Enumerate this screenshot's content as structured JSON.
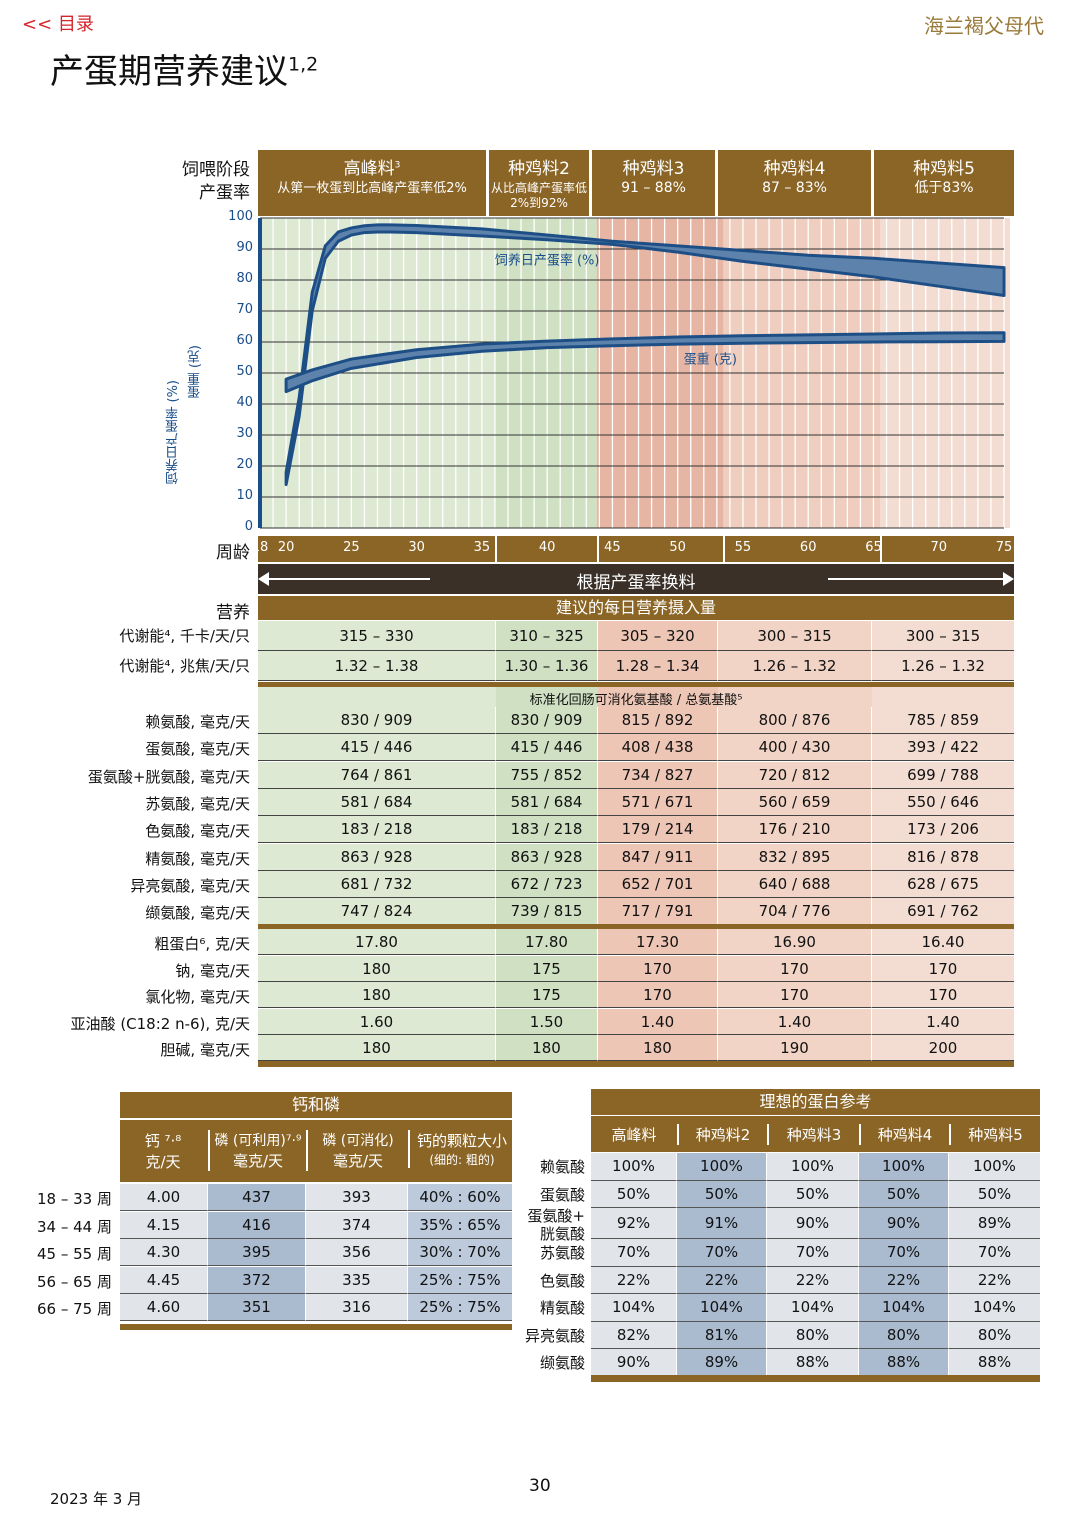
{
  "header": {
    "toc_link": "<< 目录",
    "brand": "海兰褐父母代",
    "title": "产蛋期营养建议",
    "title_sup": "1,2"
  },
  "chart_labels": {
    "stage_label": "饲喂阶段",
    "rate_label": "产蛋率",
    "week_label": "周龄",
    "y_axis_label_1": "饲养日产蛋率 (%)",
    "y_axis_label_2": "蛋重 (克)",
    "change_feed_label": "根据产蛋率换料"
  },
  "stages": [
    {
      "name": "高峰料",
      "sup": "3",
      "desc": "从第一枚蛋到比高峰产蛋率低2%"
    },
    {
      "name": "种鸡料2",
      "sup": "",
      "desc": "从比高峰产蛋率低2%到92%"
    },
    {
      "name": "种鸡料3",
      "sup": "",
      "desc": "91 – 88%"
    },
    {
      "name": "种鸡料4",
      "sup": "",
      "desc": "87 – 83%"
    },
    {
      "name": "种鸡料5",
      "sup": "",
      "desc": "低于83%"
    }
  ],
  "chart_data": {
    "type": "line",
    "x_ticks": [
      18,
      20,
      25,
      30,
      35,
      40,
      45,
      50,
      55,
      60,
      65,
      70,
      75
    ],
    "y_ticks": [
      0,
      10,
      20,
      30,
      40,
      50,
      60,
      70,
      80,
      90,
      100
    ],
    "xlim": [
      18,
      75
    ],
    "ylim": [
      0,
      100
    ],
    "grid": true,
    "series": [
      {
        "name": "饲养日产蛋率 (%)",
        "color": "#1d4f86",
        "x": [
          20,
          21,
          22,
          23,
          24,
          25,
          26,
          27,
          28,
          30,
          35,
          40,
          45,
          50,
          55,
          60,
          65,
          70,
          75
        ],
        "upper": [
          18,
          42,
          76,
          91,
          95.5,
          96.8,
          97.5,
          97.8,
          97.8,
          97.6,
          96.5,
          94.5,
          92.5,
          91,
          89.5,
          88,
          87,
          85.5,
          84
        ],
        "lower": [
          14,
          36,
          70,
          87,
          92.5,
          94.5,
          95.3,
          95.5,
          95.5,
          95.3,
          94.2,
          93,
          91.5,
          89,
          86,
          83.5,
          81,
          78,
          75
        ]
      },
      {
        "name": "蛋重 (克)",
        "color": "#1d4f86",
        "x": [
          20,
          22,
          25,
          30,
          35,
          40,
          45,
          50,
          55,
          60,
          65,
          70,
          75
        ],
        "upper": [
          48,
          51,
          54.5,
          57.5,
          59.3,
          60.3,
          61,
          61.6,
          62,
          62.3,
          62.6,
          62.9,
          63
        ],
        "lower": [
          44,
          47.5,
          51.5,
          55,
          57,
          58.2,
          58.8,
          59.3,
          59.6,
          59.8,
          60,
          60.1,
          60.2
        ]
      }
    ]
  },
  "nutrition": {
    "header_left": "营养",
    "header_main": "建议的每日营养摄入量",
    "energy_rows": [
      {
        "label": "代谢能⁴, 千卡/天/只",
        "values": [
          "315 – 330",
          "310 – 325",
          "305 – 320",
          "300 – 315",
          "300 – 315"
        ]
      },
      {
        "label": "代谢能⁴, 兆焦/天/只",
        "values": [
          "1.32 – 1.38",
          "1.30 – 1.36",
          "1.28 – 1.34",
          "1.26 – 1.32",
          "1.26 – 1.32"
        ]
      }
    ],
    "aa_header": "标准化回肠可消化氨基酸 / 总氨基酸⁵",
    "aa_rows": [
      {
        "label": "赖氨酸, 毫克/天",
        "values": [
          "830 / 909",
          "830 / 909",
          "815 / 892",
          "800 / 876",
          "785 / 859"
        ]
      },
      {
        "label": "蛋氨酸, 毫克/天",
        "values": [
          "415 / 446",
          "415 / 446",
          "408 / 438",
          "400 / 430",
          "393 / 422"
        ]
      },
      {
        "label": "蛋氨酸+胱氨酸, 毫克/天",
        "values": [
          "764 / 861",
          "755 / 852",
          "734 / 827",
          "720 / 812",
          "699 / 788"
        ]
      },
      {
        "label": "苏氨酸, 毫克/天",
        "values": [
          "581 / 684",
          "581 / 684",
          "571 / 671",
          "560 / 659",
          "550 / 646"
        ]
      },
      {
        "label": "色氨酸, 毫克/天",
        "values": [
          "183 / 218",
          "183 / 218",
          "179 / 214",
          "176 / 210",
          "173 / 206"
        ]
      },
      {
        "label": "精氨酸, 毫克/天",
        "values": [
          "863 / 928",
          "863 / 928",
          "847 / 911",
          "832 / 895",
          "816 / 878"
        ]
      },
      {
        "label": "异亮氨酸, 毫克/天",
        "values": [
          "681 / 732",
          "672 / 723",
          "652 / 701",
          "640 / 688",
          "628 / 675"
        ]
      },
      {
        "label": "缬氨酸, 毫克/天",
        "values": [
          "747 / 824",
          "739 / 815",
          "717 / 791",
          "704 / 776",
          "691 / 762"
        ]
      }
    ],
    "other_rows": [
      {
        "label": "粗蛋白⁶, 克/天",
        "values": [
          "17.80",
          "17.80",
          "17.30",
          "16.90",
          "16.40"
        ]
      },
      {
        "label": "钠, 毫克/天",
        "values": [
          "180",
          "175",
          "170",
          "170",
          "170"
        ]
      },
      {
        "label": "氯化物, 毫克/天",
        "values": [
          "180",
          "175",
          "170",
          "170",
          "170"
        ]
      },
      {
        "label": "亚油酸 (C18:2 n-6), 克/天",
        "values": [
          "1.60",
          "1.50",
          "1.40",
          "1.40",
          "1.40"
        ]
      },
      {
        "label": "胆碱, 毫克/天",
        "values": [
          "180",
          "180",
          "180",
          "190",
          "200"
        ]
      }
    ]
  },
  "ca_p": {
    "title": "钙和磷",
    "col1": "钙 ⁷·⁸",
    "col1b": "克/天",
    "col2": "磷 (可利用)⁷·⁹",
    "col2b": "毫克/天",
    "col3": "磷 (可消化)",
    "col3b": "毫克/天",
    "col4": "钙的颗粒大小",
    "col4b": "(细的: 粗的)",
    "rows": [
      {
        "label": "18 – 33 周",
        "values": [
          "4.00",
          "437",
          "393",
          "40% : 60%"
        ]
      },
      {
        "label": "34 – 44 周",
        "values": [
          "4.15",
          "416",
          "374",
          "35% : 65%"
        ]
      },
      {
        "label": "45 – 55 周",
        "values": [
          "4.30",
          "395",
          "356",
          "30% : 70%"
        ]
      },
      {
        "label": "56 – 65 周",
        "values": [
          "4.45",
          "372",
          "335",
          "25% : 75%"
        ]
      },
      {
        "label": "66 – 75 周",
        "values": [
          "4.60",
          "351",
          "316",
          "25% : 75%"
        ]
      }
    ]
  },
  "protein": {
    "title": "理想的蛋白参考",
    "cols": [
      "高峰料",
      "种鸡料2",
      "种鸡料3",
      "种鸡料4",
      "种鸡料5"
    ],
    "rows": [
      {
        "label": "赖氨酸",
        "values": [
          "100%",
          "100%",
          "100%",
          "100%",
          "100%"
        ]
      },
      {
        "label": "蛋氨酸",
        "values": [
          "50%",
          "50%",
          "50%",
          "50%",
          "50%"
        ]
      },
      {
        "label": "蛋氨酸+",
        "label2": "胱氨酸",
        "values": [
          "92%",
          "91%",
          "90%",
          "90%",
          "89%"
        ]
      },
      {
        "label": "苏氨酸",
        "values": [
          "70%",
          "70%",
          "70%",
          "70%",
          "70%"
        ]
      },
      {
        "label": "色氨酸",
        "values": [
          "22%",
          "22%",
          "22%",
          "22%",
          "22%"
        ]
      },
      {
        "label": "精氨酸",
        "values": [
          "104%",
          "104%",
          "104%",
          "104%",
          "104%"
        ]
      },
      {
        "label": "异亮氨酸",
        "values": [
          "82%",
          "81%",
          "80%",
          "80%",
          "80%"
        ]
      },
      {
        "label": "缬氨酸",
        "values": [
          "90%",
          "89%",
          "88%",
          "88%",
          "88%"
        ]
      }
    ]
  },
  "footer": {
    "date": "2023 年 3 月",
    "page": "30"
  }
}
